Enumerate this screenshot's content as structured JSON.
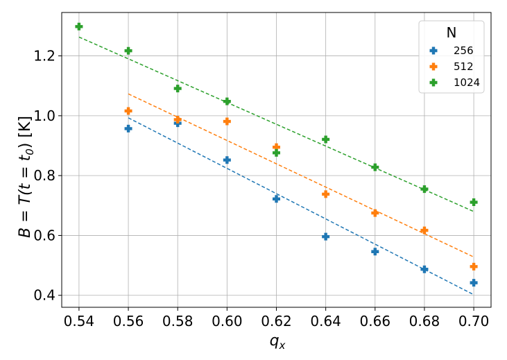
{
  "chart_data": {
    "type": "scatter",
    "title": "",
    "xlabel": "q",
    "xlabel_sub": "x",
    "ylabel": "B = T(t = t",
    "ylabel_sub": "0",
    "ylabel_suffix": ") [K]",
    "xlim": [
      0.533,
      0.707
    ],
    "ylim": [
      0.36,
      1.345
    ],
    "xticks": [
      0.54,
      0.56,
      0.58,
      0.6,
      0.62,
      0.64,
      0.66,
      0.68,
      0.7
    ],
    "xtick_labels": [
      "0.54",
      "0.56",
      "0.58",
      "0.60",
      "0.62",
      "0.64",
      "0.66",
      "0.68",
      "0.70"
    ],
    "yticks": [
      0.4,
      0.6,
      0.8,
      1.0,
      1.2
    ],
    "ytick_labels": [
      "0.4",
      "0.6",
      "0.8",
      "1.0",
      "1.2"
    ],
    "grid": true,
    "legend": {
      "title": "N",
      "placement": "top-right"
    },
    "series": [
      {
        "name": "256",
        "color": "#1f77b4",
        "points": [
          [
            0.56,
            0.957
          ],
          [
            0.58,
            0.975
          ],
          [
            0.6,
            0.852
          ],
          [
            0.62,
            0.722
          ],
          [
            0.64,
            0.596
          ],
          [
            0.66,
            0.546
          ],
          [
            0.68,
            0.487
          ],
          [
            0.7,
            0.442
          ]
        ],
        "fit": [
          [
            0.56,
            0.993
          ],
          [
            0.7,
            0.402
          ]
        ]
      },
      {
        "name": "512",
        "color": "#ff7f0e",
        "points": [
          [
            0.56,
            1.016
          ],
          [
            0.58,
            0.987
          ],
          [
            0.6,
            0.981
          ],
          [
            0.62,
            0.895
          ],
          [
            0.64,
            0.738
          ],
          [
            0.66,
            0.675
          ],
          [
            0.68,
            0.617
          ],
          [
            0.7,
            0.496
          ]
        ],
        "fit": [
          [
            0.56,
            1.073
          ],
          [
            0.7,
            0.528
          ]
        ]
      },
      {
        "name": "1024",
        "color": "#2ca02c",
        "points": [
          [
            0.54,
            1.298
          ],
          [
            0.56,
            1.217
          ],
          [
            0.58,
            1.091
          ],
          [
            0.6,
            1.048
          ],
          [
            0.62,
            0.876
          ],
          [
            0.64,
            0.921
          ],
          [
            0.66,
            0.828
          ],
          [
            0.68,
            0.755
          ],
          [
            0.7,
            0.711
          ]
        ],
        "fit": [
          [
            0.54,
            1.263
          ],
          [
            0.7,
            0.68
          ]
        ]
      }
    ]
  }
}
